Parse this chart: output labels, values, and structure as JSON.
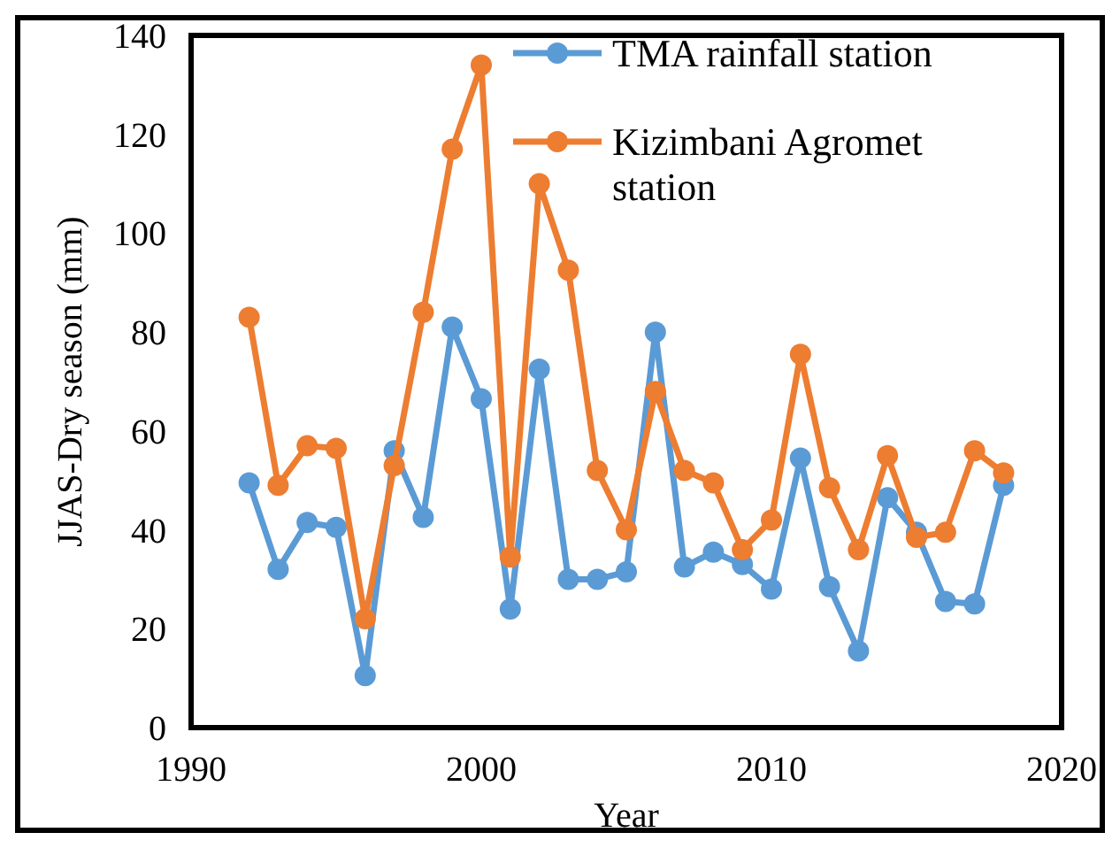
{
  "chart_data": {
    "type": "line",
    "xlabel": "Year",
    "ylabel": "JJAS-Dry season (mm)",
    "x": [
      1992,
      1993,
      1994,
      1995,
      1996,
      1997,
      1998,
      1999,
      2000,
      2001,
      2002,
      2003,
      2004,
      2005,
      2006,
      2007,
      2008,
      2009,
      2010,
      2011,
      2012,
      2013,
      2014,
      2015,
      2016,
      2017,
      2018
    ],
    "series": [
      {
        "name": "TMA rainfall station",
        "color": "#5b9bd5",
        "values": [
          49.5,
          32,
          41.5,
          40.5,
          10.5,
          56,
          42.5,
          81,
          66.5,
          24,
          72.5,
          30,
          30,
          31.5,
          80,
          32.5,
          35.5,
          33,
          28,
          54.5,
          28.5,
          15.5,
          46.5,
          39.5,
          25.5,
          25,
          49
        ]
      },
      {
        "name": "Kizimbani Agromet station",
        "color": "#ed7d31",
        "values": [
          83,
          49,
          57,
          56.5,
          22,
          53,
          84,
          117,
          134,
          34.5,
          110,
          92.5,
          52,
          40,
          68,
          52,
          49.5,
          36,
          42,
          75.5,
          48.5,
          36,
          55,
          38.5,
          39.5,
          56,
          51.5
        ]
      }
    ],
    "xlim": [
      1990,
      2020
    ],
    "xticks": [
      1990,
      2000,
      2010,
      2020
    ],
    "ylim": [
      0,
      140
    ],
    "yticks": [
      0,
      20,
      40,
      60,
      80,
      100,
      120,
      140
    ],
    "grid": false,
    "legend": "top right",
    "marker": "circle",
    "line_style": "solid"
  }
}
